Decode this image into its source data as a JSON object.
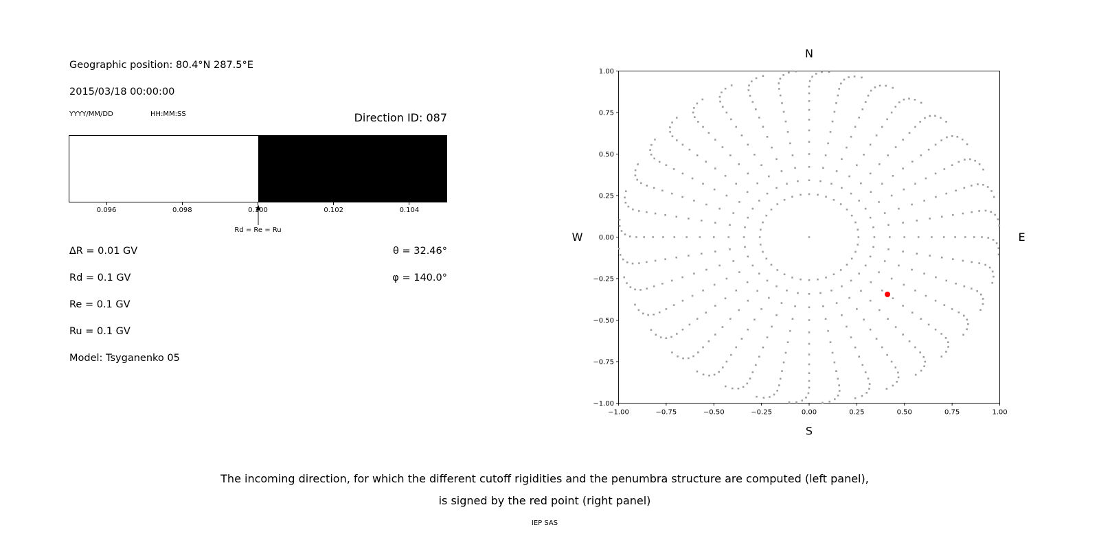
{
  "left_panel": {
    "geographic_position": "Geographic position: 80.4°N 287.5°E",
    "datetime": "2015/03/18 00:00:00",
    "date_format_label": "YYYY/MM/DD",
    "time_format_label": "HH:MM:SS",
    "direction_id": "Direction ID: 087",
    "arrow_label": "Rd = Re = Ru",
    "params": [
      "∆R = 0.01 GV",
      "Rd = 0.1 GV",
      "Re = 0.1 GV",
      "Ru = 0.1 GV",
      "Model: Tsyganenko 05"
    ],
    "theta": "θ = 32.46°",
    "phi": "φ = 140.0°"
  },
  "caption": {
    "line1": "The incoming direction, for which the different cutoff rigidities and the penumbra structure are computed (left panel),",
    "line2": "is signed by the red point (right panel)",
    "credit": "IEP SAS"
  },
  "chart_data": [
    {
      "type": "area",
      "title": "Direction ID: 087",
      "description": "Penumbra structure: allowed (white) vs forbidden (black) rigidity intervals",
      "xlim": [
        0.095,
        0.105
      ],
      "xticks": [
        0.096,
        0.098,
        0.1,
        0.102,
        0.104
      ],
      "regions": [
        {
          "from": 0.095,
          "to": 0.1,
          "color": "#ffffff",
          "meaning": "allowed"
        },
        {
          "from": 0.1,
          "to": 0.105,
          "color": "#000000",
          "meaning": "forbidden"
        }
      ],
      "annotation": {
        "x": 0.1,
        "label": "Rd = Re = Ru",
        "arrow": true
      }
    },
    {
      "type": "scatter",
      "description": "Sky map of incoming directions; gray dots are the grid of computed directions, red dot is the selected direction",
      "xlim": [
        -1,
        1
      ],
      "ylim": [
        -1,
        1
      ],
      "xticks": [
        -1,
        -0.75,
        -0.5,
        -0.25,
        0,
        0.25,
        0.5,
        0.75,
        1
      ],
      "yticks": [
        -1,
        -0.75,
        -0.5,
        -0.25,
        0,
        0.25,
        0.5,
        0.75,
        1
      ],
      "direction_labels": {
        "top": "N",
        "bottom": "S",
        "left": "W",
        "right": "E"
      },
      "grid_points": {
        "azimuth_step_deg": 10,
        "theta_deg": [
          15,
          20,
          25,
          30,
          35,
          40,
          45,
          50,
          55,
          60,
          65,
          70,
          75,
          80,
          85,
          90
        ],
        "radius_rule": "sin(theta)",
        "includes_center_point": true,
        "outer_bend_deg": 6,
        "bend_start_theta_deg": 65,
        "color": "#9e9e9e"
      },
      "red_point": {
        "x": 0.411,
        "y": -0.345,
        "theta_deg": 32.46,
        "phi_deg": 140.0,
        "color": "#ff0000"
      }
    }
  ]
}
